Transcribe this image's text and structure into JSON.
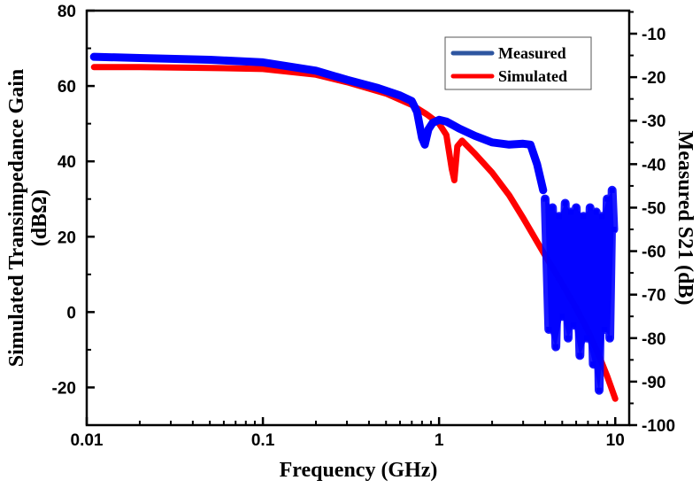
{
  "chart_data": {
    "type": "line",
    "title": "",
    "xlabel": "Frequency (GHz)",
    "xscale": "log",
    "xlim": [
      0.01,
      12
    ],
    "xticks": [
      0.01,
      0.1,
      1,
      10
    ],
    "xtick_labels": [
      "0.01",
      "0.1",
      "1",
      "10"
    ],
    "ylabel_left": [
      "Simulated Transimpedance Gain",
      "(dBΩ)"
    ],
    "ylim_left": [
      -30,
      80
    ],
    "yticks_left": [
      80,
      60,
      40,
      20,
      0,
      -20
    ],
    "ytick_labels_left": [
      "80",
      "60",
      "40",
      "20",
      "0",
      "-20"
    ],
    "ylabel_right": "Measured S21 (dB)",
    "ylim_right": [
      -100,
      -4.7
    ],
    "yticks_right": [
      -10,
      -20,
      -30,
      -40,
      -50,
      -60,
      -70,
      -80,
      -90,
      -100
    ],
    "ytick_labels_right": [
      "-10",
      "-20",
      "-30",
      "-40",
      "-50",
      "-60",
      "-70",
      "-80",
      "-90",
      "-100"
    ],
    "grid": false,
    "legend": {
      "placement": "top-right",
      "entries": [
        "Measured",
        "Simulated"
      ]
    },
    "series": [
      {
        "name": "Measured",
        "axis": "right",
        "color": "#0000ff",
        "legend_color": "#2e56a0",
        "x": [
          0.011,
          0.02,
          0.05,
          0.1,
          0.2,
          0.3,
          0.45,
          0.6,
          0.7,
          0.75,
          0.8,
          0.83,
          0.87,
          0.92,
          1.0,
          1.1,
          1.3,
          1.6,
          2.0,
          2.5,
          3.0,
          3.3,
          3.6,
          3.9
        ],
        "y": [
          -15.3,
          -15.6,
          -16.0,
          -16.6,
          -18.5,
          -20.6,
          -22.5,
          -24.2,
          -25.5,
          -28,
          -34,
          -35.5,
          -32,
          -30.5,
          -29.8,
          -30.2,
          -31.8,
          -33.5,
          -35,
          -35.5,
          -35.3,
          -35.5,
          -40,
          -46
        ]
      },
      {
        "name": "Measured (high-frequency scatter)",
        "axis": "right",
        "color": "#0000ff",
        "x": [
          4.0,
          4.2,
          4.4,
          4.6,
          4.8,
          5.0,
          5.2,
          5.4,
          5.6,
          5.8,
          6.0,
          6.3,
          6.6,
          6.9,
          7.2,
          7.5,
          7.8,
          8.1,
          8.4,
          8.7,
          9.0,
          9.3,
          9.6,
          9.8
        ],
        "y": [
          -48,
          -78,
          -50,
          -82,
          -52,
          -75,
          -49,
          -80,
          -51,
          -77,
          -50,
          -84,
          -52,
          -80,
          -50,
          -86,
          -51,
          -92,
          -52,
          -78,
          -48,
          -80,
          -46,
          -55
        ]
      },
      {
        "name": "Simulated",
        "axis": "left",
        "color": "#ff0000",
        "x": [
          0.011,
          0.02,
          0.05,
          0.1,
          0.2,
          0.3,
          0.5,
          0.7,
          0.85,
          1.0,
          1.1,
          1.18,
          1.22,
          1.27,
          1.35,
          1.6,
          2.0,
          2.5,
          3.0,
          4.0,
          5.0,
          6.0,
          7.0,
          8.0,
          9.0,
          10.0
        ],
        "y": [
          65,
          65,
          64.8,
          64.5,
          63,
          61,
          58,
          55,
          52.5,
          50,
          47,
          38,
          35,
          44,
          45.5,
          42,
          37,
          31,
          25,
          15,
          7.5,
          1,
          -5,
          -11,
          -17,
          -23
        ]
      }
    ]
  }
}
